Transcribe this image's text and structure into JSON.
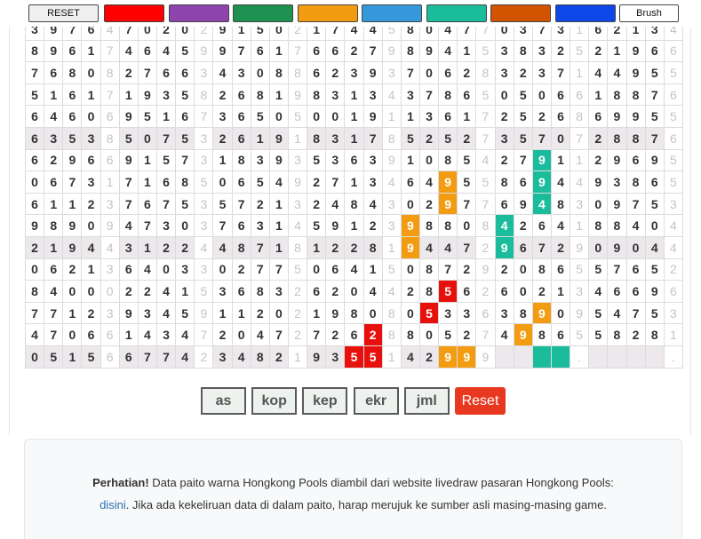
{
  "toolbar": {
    "reset": "RESET",
    "colors": [
      "#ff0000",
      "#8e44ad",
      "#1e9150",
      "#f39c12",
      "#3498db",
      "#1abc9c",
      "#d35400",
      "#0d47e8"
    ],
    "brush": "Brush"
  },
  "table": {
    "rows": [
      {
        "shaded": false,
        "cells": [
          "3",
          "9",
          "7",
          "6",
          "4",
          "7",
          "0",
          "2",
          "0",
          "2",
          "9",
          "1",
          "5",
          "0",
          "2",
          "1",
          "7",
          "4",
          "4",
          "5",
          "8",
          "0",
          "4",
          "7",
          "7",
          "0",
          "3",
          "7",
          "3",
          "1",
          "6",
          "2",
          "1",
          "3",
          "4"
        ]
      },
      {
        "shaded": false,
        "cells": [
          "8",
          "9",
          "6",
          "1",
          "7",
          "4",
          "6",
          "4",
          "5",
          "9",
          "9",
          "7",
          "6",
          "1",
          "7",
          "6",
          "6",
          "2",
          "7",
          "9",
          "8",
          "9",
          "4",
          "1",
          "5",
          "3",
          "8",
          "3",
          "2",
          "5",
          "2",
          "1",
          "9",
          "6",
          "6"
        ]
      },
      {
        "shaded": false,
        "cells": [
          "7",
          "6",
          "8",
          "0",
          "8",
          "2",
          "7",
          "6",
          "6",
          "3",
          "4",
          "3",
          "0",
          "8",
          "8",
          "6",
          "2",
          "3",
          "9",
          "3",
          "7",
          "0",
          "6",
          "2",
          "8",
          "3",
          "2",
          "3",
          "7",
          "1",
          "4",
          "4",
          "9",
          "5",
          "5"
        ]
      },
      {
        "shaded": false,
        "cells": [
          "5",
          "1",
          "6",
          "1",
          "7",
          "1",
          "9",
          "3",
          "5",
          "8",
          "2",
          "6",
          "8",
          "1",
          "9",
          "8",
          "3",
          "1",
          "3",
          "4",
          "3",
          "7",
          "8",
          "6",
          "5",
          "0",
          "5",
          "0",
          "6",
          "6",
          "1",
          "8",
          "8",
          "7",
          "6"
        ]
      },
      {
        "shaded": false,
        "cells": [
          "6",
          "4",
          "6",
          "0",
          "6",
          "9",
          "5",
          "1",
          "6",
          "7",
          "3",
          "6",
          "5",
          "0",
          "5",
          "0",
          "0",
          "1",
          "9",
          "1",
          "1",
          "3",
          "6",
          "1",
          "7",
          "2",
          "5",
          "2",
          "6",
          "8",
          "6",
          "9",
          "9",
          "5",
          "5"
        ]
      },
      {
        "shaded": true,
        "cells": [
          "6",
          "3",
          "5",
          "3",
          "8",
          "5",
          "0",
          "7",
          "5",
          "3",
          "2",
          "6",
          "1",
          "9",
          "1",
          "8",
          "3",
          "1",
          "7",
          "8",
          "5",
          "2",
          "5",
          "2",
          "7",
          "3",
          "5",
          "7",
          "0",
          "7",
          "2",
          "8",
          "8",
          "7",
          "6"
        ]
      },
      {
        "shaded": false,
        "cells": [
          "6",
          "2",
          "9",
          "6",
          "6",
          "9",
          "1",
          "5",
          "7",
          "3",
          "1",
          "8",
          "3",
          "9",
          "3",
          "5",
          "3",
          "6",
          "3",
          "9",
          "1",
          "0",
          "8",
          "5",
          "4",
          "2",
          "7",
          {
            "text": "9",
            "fill": "#1abc9c"
          },
          "1",
          "1",
          "2",
          "9",
          "6",
          "9",
          "5"
        ]
      },
      {
        "shaded": false,
        "cells": [
          "0",
          "6",
          "7",
          "3",
          "1",
          "7",
          "1",
          "6",
          "8",
          "5",
          "0",
          "6",
          "5",
          "4",
          "9",
          "2",
          "7",
          "1",
          "3",
          "4",
          "6",
          "4",
          {
            "text": "9",
            "fill": "#f39c12"
          },
          "5",
          "5",
          "8",
          "6",
          {
            "text": "9",
            "fill": "#1abc9c"
          },
          "4",
          "4",
          "9",
          "3",
          "8",
          "6",
          "5"
        ]
      },
      {
        "shaded": false,
        "cells": [
          "6",
          "1",
          "1",
          "2",
          "3",
          "7",
          "6",
          "7",
          "5",
          "3",
          "5",
          "7",
          "2",
          "1",
          "3",
          "2",
          "4",
          "8",
          "4",
          "3",
          "0",
          "2",
          {
            "text": "9",
            "fill": "#f39c12"
          },
          "7",
          "7",
          "6",
          "9",
          {
            "text": "4",
            "fill": "#1abc9c"
          },
          "8",
          "3",
          "0",
          "9",
          "7",
          "5",
          "3"
        ]
      },
      {
        "shaded": false,
        "cells": [
          "9",
          "8",
          "9",
          "0",
          "9",
          "4",
          "7",
          "3",
          "0",
          "3",
          "7",
          "6",
          "3",
          "1",
          "4",
          "5",
          "9",
          "1",
          "2",
          "3",
          {
            "text": "9",
            "fill": "#f39c12"
          },
          "8",
          "8",
          "0",
          "8",
          {
            "text": "4",
            "fill": "#1abc9c"
          },
          "2",
          "6",
          "4",
          "1",
          "8",
          "8",
          "4",
          "0",
          "4"
        ]
      },
      {
        "shaded": true,
        "cells": [
          "2",
          "1",
          "9",
          "4",
          "4",
          "3",
          "1",
          "2",
          "2",
          "4",
          "4",
          "8",
          "7",
          "1",
          "8",
          "1",
          "2",
          "2",
          "8",
          "1",
          {
            "text": "9",
            "fill": "#f39c12"
          },
          "4",
          "4",
          "7",
          "2",
          {
            "text": "9",
            "fill": "#1abc9c"
          },
          "6",
          "7",
          "2",
          "9",
          "0",
          "9",
          "0",
          "4",
          "4"
        ]
      },
      {
        "shaded": false,
        "cells": [
          "0",
          "6",
          "2",
          "1",
          "3",
          "6",
          "4",
          "0",
          "3",
          "3",
          "0",
          "2",
          "7",
          "7",
          "5",
          "0",
          "6",
          "4",
          "1",
          "5",
          "0",
          "8",
          "7",
          "2",
          "9",
          "2",
          "0",
          "8",
          "6",
          "5",
          "5",
          "7",
          "6",
          "5",
          "2"
        ]
      },
      {
        "shaded": false,
        "cells": [
          "8",
          "4",
          "0",
          "0",
          "0",
          "2",
          "2",
          "4",
          "1",
          "5",
          "3",
          "6",
          "8",
          "3",
          "2",
          "6",
          "2",
          "0",
          "4",
          "4",
          "2",
          "8",
          {
            "text": "5",
            "fill": "#e8100c"
          },
          "6",
          "2",
          "6",
          "0",
          "2",
          "1",
          "3",
          "4",
          "6",
          "6",
          "9",
          "6"
        ]
      },
      {
        "shaded": false,
        "cells": [
          "7",
          "7",
          "1",
          "2",
          "3",
          "9",
          "3",
          "4",
          "5",
          "9",
          "1",
          "1",
          "2",
          "0",
          "2",
          "1",
          "9",
          "8",
          "0",
          "8",
          "0",
          {
            "text": "5",
            "fill": "#e8100c"
          },
          "3",
          "3",
          "6",
          "3",
          "8",
          {
            "text": "9",
            "fill": "#f39c12"
          },
          "0",
          "9",
          "5",
          "4",
          "7",
          "5",
          "3"
        ]
      },
      {
        "shaded": false,
        "cells": [
          "4",
          "7",
          "0",
          "6",
          "6",
          "1",
          "4",
          "3",
          "4",
          "7",
          "2",
          "0",
          "4",
          "7",
          "2",
          "7",
          "2",
          "6",
          {
            "text": "2",
            "fill": "#e8100c"
          },
          "8",
          "8",
          "0",
          "5",
          "2",
          "7",
          "4",
          {
            "text": "9",
            "fill": "#f39c12"
          },
          "8",
          "6",
          "5",
          "5",
          "8",
          "2",
          "8",
          "1"
        ]
      },
      {
        "shaded": true,
        "cells": [
          "0",
          "5",
          "1",
          "5",
          "6",
          "6",
          "7",
          "7",
          "4",
          "2",
          "3",
          "4",
          "8",
          "2",
          "1",
          "9",
          "3",
          {
            "text": "5",
            "fill": "#e8100c"
          },
          {
            "text": "5",
            "fill": "#e8100c"
          },
          "1",
          "4",
          "2",
          {
            "text": "9",
            "fill": "#f39c12"
          },
          {
            "text": "9",
            "fill": "#f39c12"
          },
          "9",
          null,
          null,
          {
            "fill": "#1abc9c"
          },
          {
            "fill": "#1abc9c"
          },
          ".",
          null,
          null,
          null,
          null,
          "."
        ]
      }
    ]
  },
  "buttons": [
    "as",
    "kop",
    "kep",
    "ekr",
    "jml"
  ],
  "reset_button": "Reset",
  "notice": {
    "label": "Perhatian!",
    "text_before": " Data paito warna Hongkong Pools diambil dari website livedraw pasaran Hongkong Pools: ",
    "link": "disini",
    "text_after": ". Jika ada kekeliruan data di dalam paito, harap merujuk ke sumber asli masing-masing game."
  }
}
